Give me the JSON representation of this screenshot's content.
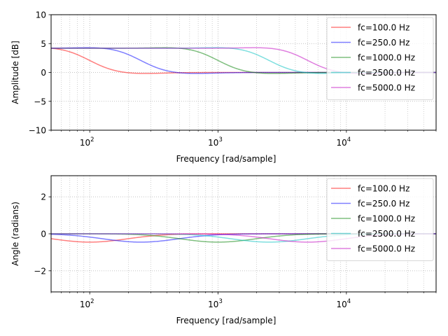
{
  "chart_data": [
    {
      "type": "line",
      "title": "",
      "xlabel": "Frequency [rad/sample]",
      "ylabel": "Amplitude [dB]",
      "xscale": "log",
      "xlim": [
        50,
        50000
      ],
      "ylim": [
        -10,
        10
      ],
      "yticks": [
        -10,
        -5,
        0,
        5,
        10
      ],
      "ytick_labels": [
        "−10",
        "−5",
        "0",
        "5",
        "10"
      ],
      "xticks": [
        100,
        1000,
        10000
      ],
      "xtick_labels": [
        {
          "base": "10",
          "exp": "2"
        },
        {
          "base": "10",
          "exp": "3"
        },
        {
          "base": "10",
          "exp": "4"
        }
      ],
      "grid": true,
      "legend_position": "top-right",
      "series": [
        {
          "name": "fc=100.0 Hz",
          "color": "#ff0000",
          "fc": 100,
          "gain_db": 4.2
        },
        {
          "name": "fc=250.0 Hz",
          "color": "#0000ff",
          "fc": 250,
          "gain_db": 4.2
        },
        {
          "name": "fc=1000.0 Hz",
          "color": "#008000",
          "fc": 1000,
          "gain_db": 4.2
        },
        {
          "name": "fc=2500.0 Hz",
          "color": "#00bfbf",
          "fc": 2500,
          "gain_db": 4.2
        },
        {
          "name": "fc=5000.0 Hz",
          "color": "#bf00bf",
          "fc": 5000,
          "gain_db": 4.2
        }
      ]
    },
    {
      "type": "line",
      "title": "",
      "xlabel": "Frequency [rad/sample]",
      "ylabel": "Angle (radians)",
      "xscale": "log",
      "xlim": [
        50,
        50000
      ],
      "ylim": [
        -3.1416,
        3.1416
      ],
      "yticks": [
        -2,
        0,
        2
      ],
      "ytick_labels": [
        "−2",
        "0",
        "2"
      ],
      "xticks": [
        100,
        1000,
        10000
      ],
      "xtick_labels": [
        {
          "base": "10",
          "exp": "2"
        },
        {
          "base": "10",
          "exp": "3"
        },
        {
          "base": "10",
          "exp": "4"
        }
      ],
      "grid": true,
      "legend_position": "top-right",
      "series": [
        {
          "name": "fc=100.0 Hz",
          "color": "#ff0000",
          "fc": 100,
          "min_phase": -0.45
        },
        {
          "name": "fc=250.0 Hz",
          "color": "#0000ff",
          "fc": 250,
          "min_phase": -0.45
        },
        {
          "name": "fc=1000.0 Hz",
          "color": "#008000",
          "fc": 1000,
          "min_phase": -0.45
        },
        {
          "name": "fc=2500.0 Hz",
          "color": "#00bfbf",
          "fc": 2500,
          "min_phase": -0.45
        },
        {
          "name": "fc=5000.0 Hz",
          "color": "#bf00bf",
          "fc": 5000,
          "min_phase": -0.45
        }
      ]
    }
  ]
}
